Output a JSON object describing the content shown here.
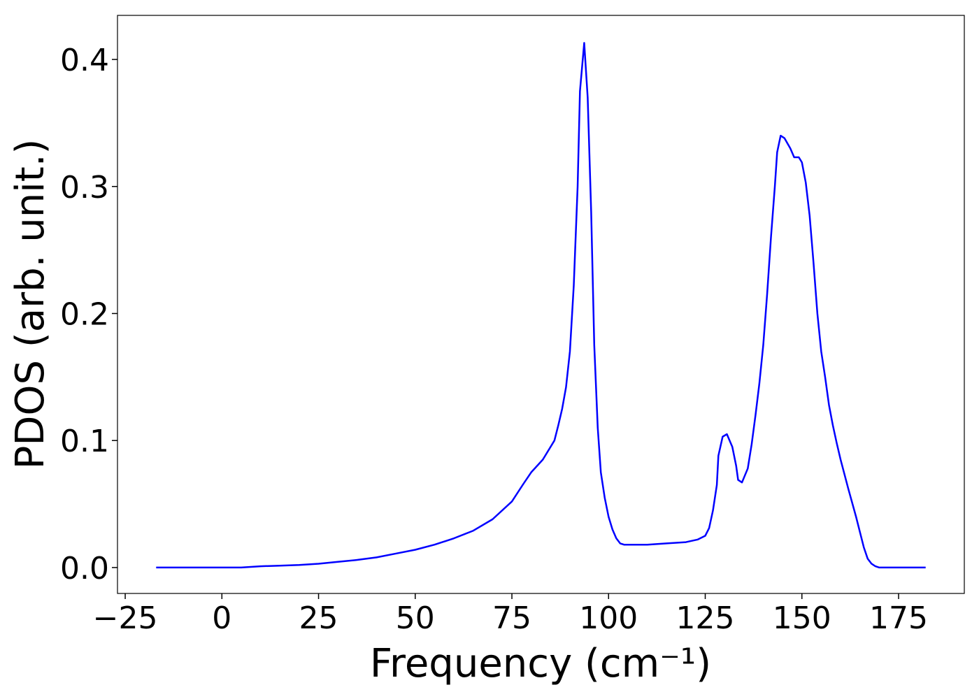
{
  "chart_data": {
    "type": "line",
    "x_label": "Frequency (cm⁻¹)",
    "y_label": "PDOS (arb. unit.)",
    "x": [
      -17,
      -10,
      -5,
      0,
      5,
      10,
      15,
      20,
      25,
      30,
      35,
      40,
      45,
      50,
      55,
      60,
      65,
      70,
      75,
      78,
      80,
      83,
      86,
      87,
      88,
      89,
      90,
      91,
      92,
      92.6,
      93.7,
      94.6,
      95.5,
      96.3,
      97.2,
      98,
      99,
      100,
      101,
      102,
      103,
      104,
      106,
      110,
      115,
      120,
      123,
      125,
      126,
      127,
      128,
      128.4,
      129.5,
      130.6,
      132,
      133,
      133.5,
      134.5,
      136,
      137,
      138,
      139,
      140,
      141,
      142,
      143,
      143.6,
      144.5,
      145.5,
      147,
      148,
      149.2,
      150,
      151,
      152,
      153,
      154,
      155,
      156,
      157,
      158,
      159,
      160,
      162,
      164,
      165,
      166,
      167,
      168,
      169,
      170,
      175,
      182
    ],
    "values": [
      0,
      0,
      0,
      0,
      0,
      0.001,
      0.0015,
      0.002,
      0.003,
      0.0045,
      0.006,
      0.008,
      0.011,
      0.014,
      0.018,
      0.023,
      0.029,
      0.038,
      0.052,
      0.066,
      0.075,
      0.085,
      0.1,
      0.112,
      0.125,
      0.142,
      0.17,
      0.222,
      0.3,
      0.375,
      0.413,
      0.37,
      0.28,
      0.175,
      0.11,
      0.075,
      0.055,
      0.04,
      0.03,
      0.023,
      0.019,
      0.018,
      0.018,
      0.018,
      0.019,
      0.02,
      0.022,
      0.025,
      0.031,
      0.045,
      0.065,
      0.088,
      0.103,
      0.105,
      0.095,
      0.08,
      0.069,
      0.067,
      0.078,
      0.097,
      0.12,
      0.145,
      0.175,
      0.215,
      0.26,
      0.3,
      0.327,
      0.34,
      0.338,
      0.33,
      0.323,
      0.323,
      0.319,
      0.303,
      0.277,
      0.24,
      0.2,
      0.17,
      0.15,
      0.128,
      0.112,
      0.098,
      0.085,
      0.062,
      0.04,
      0.028,
      0.016,
      0.007,
      0.003,
      0.001,
      0,
      0,
      0
    ],
    "color": "#0000ff",
    "xlim": [
      -27,
      192
    ],
    "ylim": [
      -0.0204,
      0.4347
    ],
    "xticks": [
      {
        "value": -25,
        "label": "−25"
      },
      0,
      25,
      50,
      75,
      100,
      125,
      150,
      175
    ],
    "yticks": [
      {
        "value": 0,
        "label": "0.0"
      },
      0.1,
      0.2,
      0.3,
      0.4
    ]
  }
}
